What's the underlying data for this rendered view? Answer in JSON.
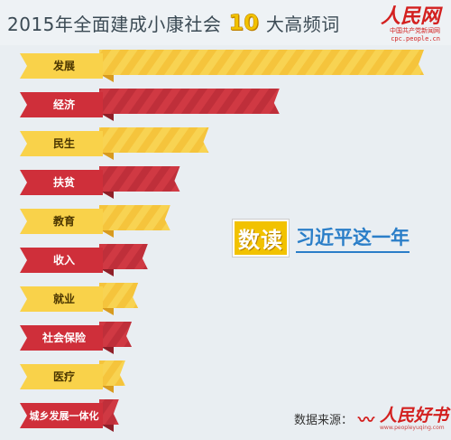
{
  "header": {
    "title_prefix": "2015年全面建成小康社会",
    "title_number": "10",
    "title_suffix": "大高频词",
    "logo_main": "人民网",
    "logo_sub": "中国共产党新闻网",
    "logo_url": "cpc.people.cn"
  },
  "badge": {
    "box": "数读",
    "text": "习近平这一年"
  },
  "source": {
    "label": "数据来源：",
    "logo_main": "人民好书",
    "logo_url": "www.peopleyuqing.com"
  },
  "colors": {
    "yellow": "#f9d24a",
    "yellow_dark": "#d89b1f",
    "red": "#cf2f3a",
    "red_dark": "#8f1f28",
    "stripe_yellow": "#f6c232",
    "stripe_red": "#b8242e"
  },
  "chart_data": {
    "type": "bar",
    "orientation": "horizontal",
    "categories": [
      "发展",
      "经济",
      "民生",
      "扶贫",
      "教育",
      "收入",
      "就业",
      "社会保险",
      "医疗",
      "城乡发展一体化"
    ],
    "values": [
      100,
      55,
      33,
      24,
      21,
      14,
      11,
      9,
      7,
      5
    ],
    "bar_colors": [
      "yellow",
      "red",
      "yellow",
      "red",
      "yellow",
      "red",
      "yellow",
      "red",
      "yellow",
      "red"
    ],
    "grid": false,
    "xlabel": "",
    "ylabel": ""
  }
}
